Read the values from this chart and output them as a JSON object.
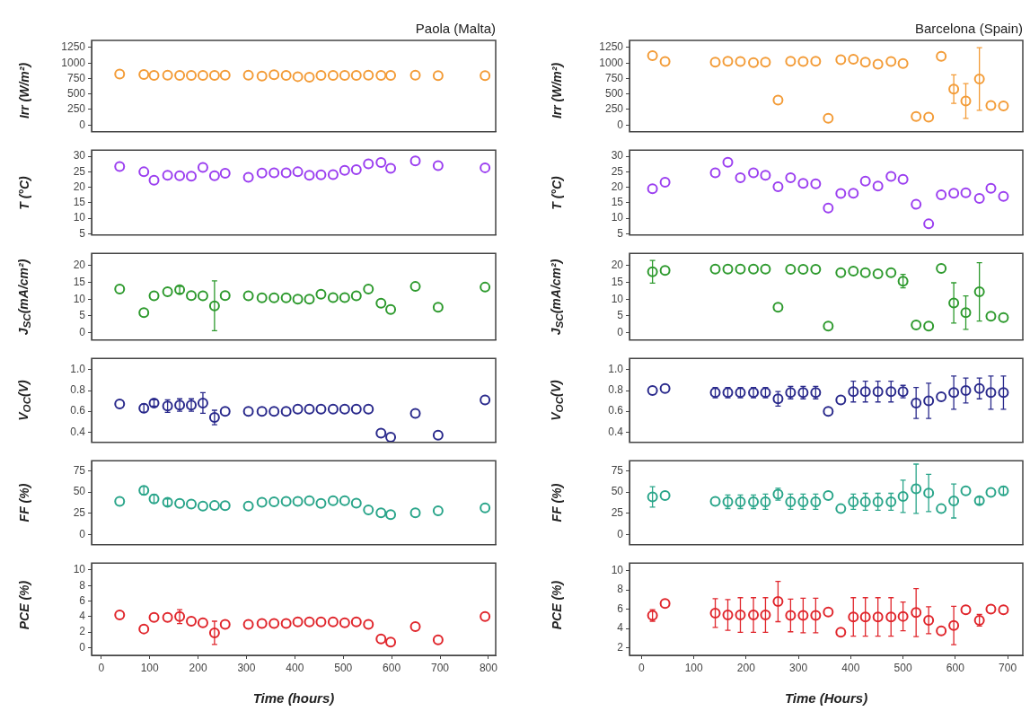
{
  "chart_data": [
    {
      "type": "scatter",
      "title": "Paola (Malta)",
      "ylabel": "Irr (W/m²)",
      "color": "#f39c38",
      "marker": "circle",
      "tick_labels": "y",
      "xlim": [
        -20,
        815
      ],
      "xticks": [
        0,
        100,
        200,
        300,
        400,
        500,
        600,
        700,
        800
      ],
      "ylim": [
        -110,
        1365
      ],
      "yticks": [
        0,
        250,
        500,
        750,
        1000,
        1250
      ],
      "x": [
        38,
        88,
        109,
        137,
        162,
        186,
        210,
        234,
        256,
        304,
        332,
        357,
        382,
        406,
        430,
        454,
        479,
        503,
        527,
        552,
        578,
        598,
        649,
        696,
        793
      ],
      "values": [
        820,
        815,
        800,
        805,
        800,
        800,
        800,
        800,
        805,
        805,
        790,
        810,
        800,
        780,
        770,
        800,
        800,
        800,
        800,
        805,
        800,
        800,
        805,
        795,
        795
      ]
    },
    {
      "type": "scatter",
      "ylabel": "T (°C)",
      "color": "#9b3ff0",
      "marker": "circle",
      "tick_labels": "y",
      "xlim": [
        -20,
        815
      ],
      "xticks": [
        0,
        100,
        200,
        300,
        400,
        500,
        600,
        700,
        800
      ],
      "ylim": [
        4.6,
        32
      ],
      "yticks": [
        5,
        10,
        15,
        20,
        25,
        30
      ],
      "x": [
        38,
        88,
        109,
        137,
        162,
        186,
        210,
        234,
        256,
        304,
        332,
        357,
        382,
        406,
        430,
        454,
        479,
        503,
        527,
        552,
        578,
        598,
        649,
        696,
        793
      ],
      "values": [
        26.7,
        25,
        22.3,
        23.9,
        23.7,
        23.6,
        26.4,
        23.7,
        24.5,
        23.2,
        24.6,
        24.7,
        24.7,
        25,
        23.9,
        24,
        24.1,
        25.5,
        25.7,
        27.6,
        28,
        26.1,
        28.5,
        27,
        26.3
      ]
    },
    {
      "type": "scatter",
      "ylabel": "J$_{SC}$(mA/cm²)",
      "color": "#2e9a2e",
      "marker": "circle",
      "tick_labels": "y",
      "xlim": [
        -20,
        815
      ],
      "xticks": [
        0,
        100,
        200,
        300,
        400,
        500,
        600,
        700,
        800
      ],
      "ylim": [
        -2.2,
        23.7
      ],
      "yticks": [
        0,
        5,
        10,
        15,
        20
      ],
      "x": [
        38,
        88,
        109,
        137,
        162,
        186,
        210,
        234,
        256,
        304,
        332,
        357,
        382,
        406,
        430,
        454,
        479,
        503,
        527,
        552,
        578,
        598,
        649,
        696,
        793
      ],
      "values": [
        13,
        6,
        11,
        12.2,
        12.8,
        11.1,
        11,
        8,
        11.1,
        11,
        10.4,
        10.4,
        10.4,
        10,
        10,
        11.5,
        10.5,
        10.5,
        11,
        13,
        8.8,
        6.9,
        13.8,
        7.6,
        13.6
      ],
      "errors": [
        null,
        null,
        null,
        null,
        1,
        null,
        null,
        [
          0.6,
          15.5
        ],
        null,
        null,
        null,
        null,
        null,
        null,
        null,
        null,
        null,
        null,
        null,
        null,
        null,
        null,
        null,
        null,
        null
      ]
    },
    {
      "type": "scatter",
      "ylabel": "V$_{OC}$(V)",
      "color": "#2a2a8c",
      "marker": "circle",
      "tick_labels": "y",
      "xlim": [
        -20,
        815
      ],
      "xticks": [
        0,
        100,
        200,
        300,
        400,
        500,
        600,
        700,
        800
      ],
      "ylim": [
        0.3,
        1.11
      ],
      "yticks": [
        0.4,
        0.6,
        0.8,
        {
          "value": 1,
          "label": "1.0"
        }
      ],
      "x": [
        38,
        88,
        109,
        137,
        162,
        186,
        210,
        234,
        256,
        304,
        332,
        357,
        382,
        406,
        430,
        454,
        479,
        503,
        527,
        552,
        578,
        598,
        649,
        696,
        793
      ],
      "values": [
        0.67,
        0.63,
        0.68,
        0.65,
        0.66,
        0.66,
        0.68,
        0.54,
        0.6,
        0.6,
        0.6,
        0.6,
        0.6,
        0.62,
        0.62,
        0.62,
        0.62,
        0.62,
        0.62,
        0.62,
        0.39,
        0.35,
        0.58,
        0.37,
        0.71
      ],
      "errors": [
        null,
        0.04,
        0.03,
        0.06,
        0.06,
        0.06,
        0.1,
        0.07,
        null,
        null,
        null,
        null,
        null,
        null,
        null,
        null,
        null,
        null,
        null,
        null,
        null,
        null,
        null,
        null,
        null
      ]
    },
    {
      "type": "scatter",
      "ylabel": "FF (%)",
      "color": "#2aa58a",
      "marker": "circle",
      "tick_labels": "y",
      "xlim": [
        -20,
        815
      ],
      "xticks": [
        0,
        100,
        200,
        300,
        400,
        500,
        600,
        700,
        800
      ],
      "ylim": [
        -12,
        87
      ],
      "yticks": [
        0,
        25,
        50,
        75
      ],
      "x": [
        38,
        88,
        109,
        137,
        162,
        186,
        210,
        234,
        256,
        304,
        332,
        357,
        382,
        406,
        430,
        454,
        479,
        503,
        527,
        552,
        578,
        598,
        649,
        696,
        793
      ],
      "values": [
        39,
        52,
        42,
        38,
        36.7,
        36,
        33.6,
        34.2,
        34,
        33.6,
        38,
        38.6,
        39,
        39,
        39.8,
        36.7,
        39.8,
        40,
        37,
        29,
        25.5,
        23.6,
        25.5,
        28,
        31.5
      ],
      "errors": [
        null,
        5,
        5,
        4,
        null,
        null,
        null,
        null,
        null,
        null,
        null,
        null,
        null,
        null,
        null,
        null,
        null,
        null,
        null,
        null,
        null,
        null,
        null,
        null,
        null
      ]
    },
    {
      "type": "scatter",
      "ylabel": "PCE (%)",
      "xlabel": "Time (hours)",
      "color": "#e0262c",
      "marker": "circle",
      "xlim": [
        -20,
        815
      ],
      "xticks": [
        0,
        100,
        200,
        300,
        400,
        500,
        600,
        700,
        800
      ],
      "ylim": [
        -1,
        10.9
      ],
      "yticks": [
        0,
        2,
        4,
        6,
        8,
        10
      ],
      "x": [
        38,
        88,
        109,
        137,
        162,
        186,
        210,
        234,
        256,
        304,
        332,
        357,
        382,
        406,
        430,
        454,
        479,
        503,
        527,
        552,
        578,
        598,
        649,
        696,
        793
      ],
      "values": [
        4.2,
        2.4,
        3.9,
        3.9,
        4,
        3.4,
        3.2,
        1.9,
        3,
        3,
        3.1,
        3.1,
        3.1,
        3.3,
        3.3,
        3.3,
        3.3,
        3.2,
        3.3,
        3,
        1.1,
        0.7,
        2.7,
        1,
        4
      ],
      "errors": [
        null,
        null,
        null,
        null,
        0.9,
        null,
        null,
        1.5,
        null,
        null,
        null,
        null,
        null,
        null,
        null,
        null,
        null,
        null,
        null,
        null,
        null,
        null,
        null,
        null,
        null
      ]
    },
    {
      "type": "scatter",
      "title": "Barcelona (Spain)",
      "ylabel": "Irr (W/m²)",
      "color": "#f39c38",
      "marker": "circle",
      "tick_labels": "y",
      "xlim": [
        -23,
        729
      ],
      "xticks": [
        0,
        100,
        200,
        300,
        400,
        500,
        600,
        700
      ],
      "ylim": [
        -110,
        1365
      ],
      "yticks": [
        0,
        250,
        500,
        750,
        1000,
        1250
      ],
      "x": [
        21,
        45,
        141,
        165,
        189,
        214,
        237,
        261,
        285,
        309,
        333,
        357,
        381,
        405,
        428,
        452,
        477,
        500,
        525,
        549,
        573,
        597,
        620,
        646,
        668,
        692
      ],
      "values": [
        1118,
        1024,
        1014,
        1028,
        1024,
        1005,
        1014,
        401,
        1028,
        1024,
        1028,
        108,
        1052,
        1061,
        1014,
        981,
        1024,
        991,
        137,
        127,
        1108,
        580,
        387,
        741,
        316,
        307
      ],
      "errors": [
        null,
        null,
        null,
        null,
        null,
        null,
        null,
        null,
        null,
        null,
        null,
        null,
        null,
        null,
        null,
        null,
        null,
        null,
        null,
        null,
        null,
        230,
        280,
        505,
        null,
        null
      ]
    },
    {
      "type": "scatter",
      "ylabel": "T (°C)",
      "color": "#9b3ff0",
      "marker": "circle",
      "tick_labels": "y",
      "xlim": [
        -23,
        729
      ],
      "xticks": [
        0,
        100,
        200,
        300,
        400,
        500,
        600,
        700
      ],
      "ylim": [
        4.6,
        32
      ],
      "yticks": [
        5,
        10,
        15,
        20,
        25,
        30
      ],
      "x": [
        21,
        45,
        141,
        165,
        189,
        214,
        237,
        261,
        285,
        309,
        333,
        357,
        381,
        405,
        428,
        452,
        477,
        500,
        525,
        549,
        573,
        597,
        620,
        646,
        668,
        692
      ],
      "values": [
        19.5,
        21.6,
        24.7,
        28.1,
        23.1,
        24.7,
        23.9,
        20.2,
        23.1,
        21.3,
        21.1,
        13.3,
        18,
        18.1,
        22,
        20.4,
        23.5,
        22.6,
        14.5,
        8.2,
        17.6,
        18.1,
        18.2,
        16.4,
        19.7,
        17.1
      ]
    },
    {
      "type": "scatter",
      "ylabel": "J$_{SC}$(mA/cm²)",
      "color": "#2e9a2e",
      "marker": "circle",
      "tick_labels": "y",
      "xlim": [
        -23,
        729
      ],
      "xticks": [
        0,
        100,
        200,
        300,
        400,
        500,
        600,
        700
      ],
      "ylim": [
        -2.2,
        23.7
      ],
      "yticks": [
        0,
        5,
        10,
        15,
        20
      ],
      "x": [
        21,
        45,
        141,
        165,
        189,
        214,
        237,
        261,
        285,
        309,
        333,
        357,
        381,
        405,
        428,
        452,
        477,
        500,
        525,
        549,
        573,
        597,
        620,
        646,
        668,
        692
      ],
      "values": [
        18.2,
        18.6,
        19,
        19,
        19,
        19,
        19,
        7.6,
        18.9,
        18.9,
        18.9,
        2,
        17.9,
        18.4,
        17.9,
        17.6,
        17.9,
        15.4,
        2.3,
        2,
        19.2,
        8.9,
        6,
        12.2,
        4.9,
        4.5
      ],
      "errors": [
        3.4,
        null,
        null,
        null,
        null,
        null,
        null,
        null,
        null,
        null,
        null,
        null,
        null,
        null,
        null,
        null,
        null,
        2,
        null,
        null,
        null,
        6,
        5,
        8.7,
        null,
        null
      ]
    },
    {
      "type": "scatter",
      "ylabel": "V$_{OC}$(V)",
      "color": "#2a2a8c",
      "marker": "circle",
      "tick_labels": "y",
      "xlim": [
        -23,
        729
      ],
      "xticks": [
        0,
        100,
        200,
        300,
        400,
        500,
        600,
        700
      ],
      "ylim": [
        0.3,
        1.11
      ],
      "yticks": [
        0.4,
        0.6,
        0.8,
        {
          "value": 1,
          "label": "1.0"
        }
      ],
      "x": [
        21,
        45,
        141,
        165,
        189,
        214,
        237,
        261,
        285,
        309,
        333,
        357,
        381,
        405,
        428,
        452,
        477,
        500,
        525,
        549,
        573,
        597,
        620,
        646,
        668,
        692
      ],
      "values": [
        0.8,
        0.82,
        0.78,
        0.78,
        0.78,
        0.78,
        0.78,
        0.72,
        0.78,
        0.78,
        0.78,
        0.6,
        0.71,
        0.79,
        0.79,
        0.79,
        0.79,
        0.79,
        0.68,
        0.7,
        0.74,
        0.78,
        0.8,
        0.82,
        0.78,
        0.78
      ],
      "errors": [
        null,
        null,
        0.05,
        0.05,
        0.05,
        0.05,
        0.05,
        0.07,
        0.06,
        0.06,
        0.06,
        null,
        null,
        0.1,
        0.1,
        0.1,
        0.1,
        0.06,
        0.15,
        0.17,
        null,
        0.16,
        0.12,
        0.1,
        0.16,
        0.16
      ]
    },
    {
      "type": "scatter",
      "ylabel": "FF (%)",
      "color": "#2aa58a",
      "marker": "circle",
      "tick_labels": "y",
      "xlim": [
        -23,
        729
      ],
      "xticks": [
        0,
        100,
        200,
        300,
        400,
        500,
        600,
        700
      ],
      "ylim": [
        -12,
        87
      ],
      "yticks": [
        0,
        25,
        50,
        75
      ],
      "x": [
        21,
        45,
        141,
        165,
        189,
        214,
        237,
        261,
        285,
        309,
        333,
        357,
        381,
        405,
        428,
        452,
        477,
        500,
        525,
        549,
        573,
        597,
        620,
        646,
        668,
        692
      ],
      "values": [
        44.4,
        46,
        39,
        38.6,
        38.6,
        38.6,
        38.6,
        47.6,
        38.6,
        38.6,
        38.6,
        46,
        30.5,
        38.6,
        38.6,
        38.6,
        38.6,
        45,
        54,
        49,
        30.5,
        39.5,
        51.5,
        40,
        49.7,
        51.5
      ],
      "errors": [
        12,
        null,
        null,
        8,
        8,
        8,
        9,
        7,
        9,
        9,
        9,
        null,
        null,
        9,
        10,
        10,
        10,
        19,
        29,
        22,
        null,
        20,
        null,
        4,
        null,
        5
      ]
    },
    {
      "type": "scatter",
      "ylabel": "PCE (%)",
      "xlabel": "Time (Hours)",
      "color": "#e0262c",
      "marker": "circle",
      "xlim": [
        -23,
        729
      ],
      "xticks": [
        0,
        100,
        200,
        300,
        400,
        500,
        600,
        700
      ],
      "ylim": [
        1.2,
        10.8
      ],
      "yticks": [
        2,
        4,
        6,
        8,
        10
      ],
      "x": [
        21,
        45,
        141,
        165,
        189,
        214,
        237,
        261,
        285,
        309,
        333,
        357,
        381,
        405,
        428,
        452,
        477,
        500,
        525,
        549,
        573,
        597,
        620,
        646,
        668,
        692
      ],
      "values": [
        5.35,
        6.6,
        5.6,
        5.4,
        5.4,
        5.4,
        5.4,
        6.8,
        5.35,
        5.35,
        5.35,
        5.7,
        3.6,
        5.2,
        5.2,
        5.2,
        5.2,
        5.25,
        5.65,
        4.85,
        3.75,
        4.3,
        5.95,
        4.85,
        6,
        5.95
      ],
      "errors": [
        0.6,
        null,
        1.5,
        1.6,
        1.8,
        1.8,
        1.8,
        2.1,
        1.7,
        1.8,
        1.8,
        null,
        null,
        2,
        2,
        2,
        2,
        1.5,
        2.5,
        1.4,
        null,
        2,
        null,
        0.6,
        null,
        null
      ]
    }
  ]
}
